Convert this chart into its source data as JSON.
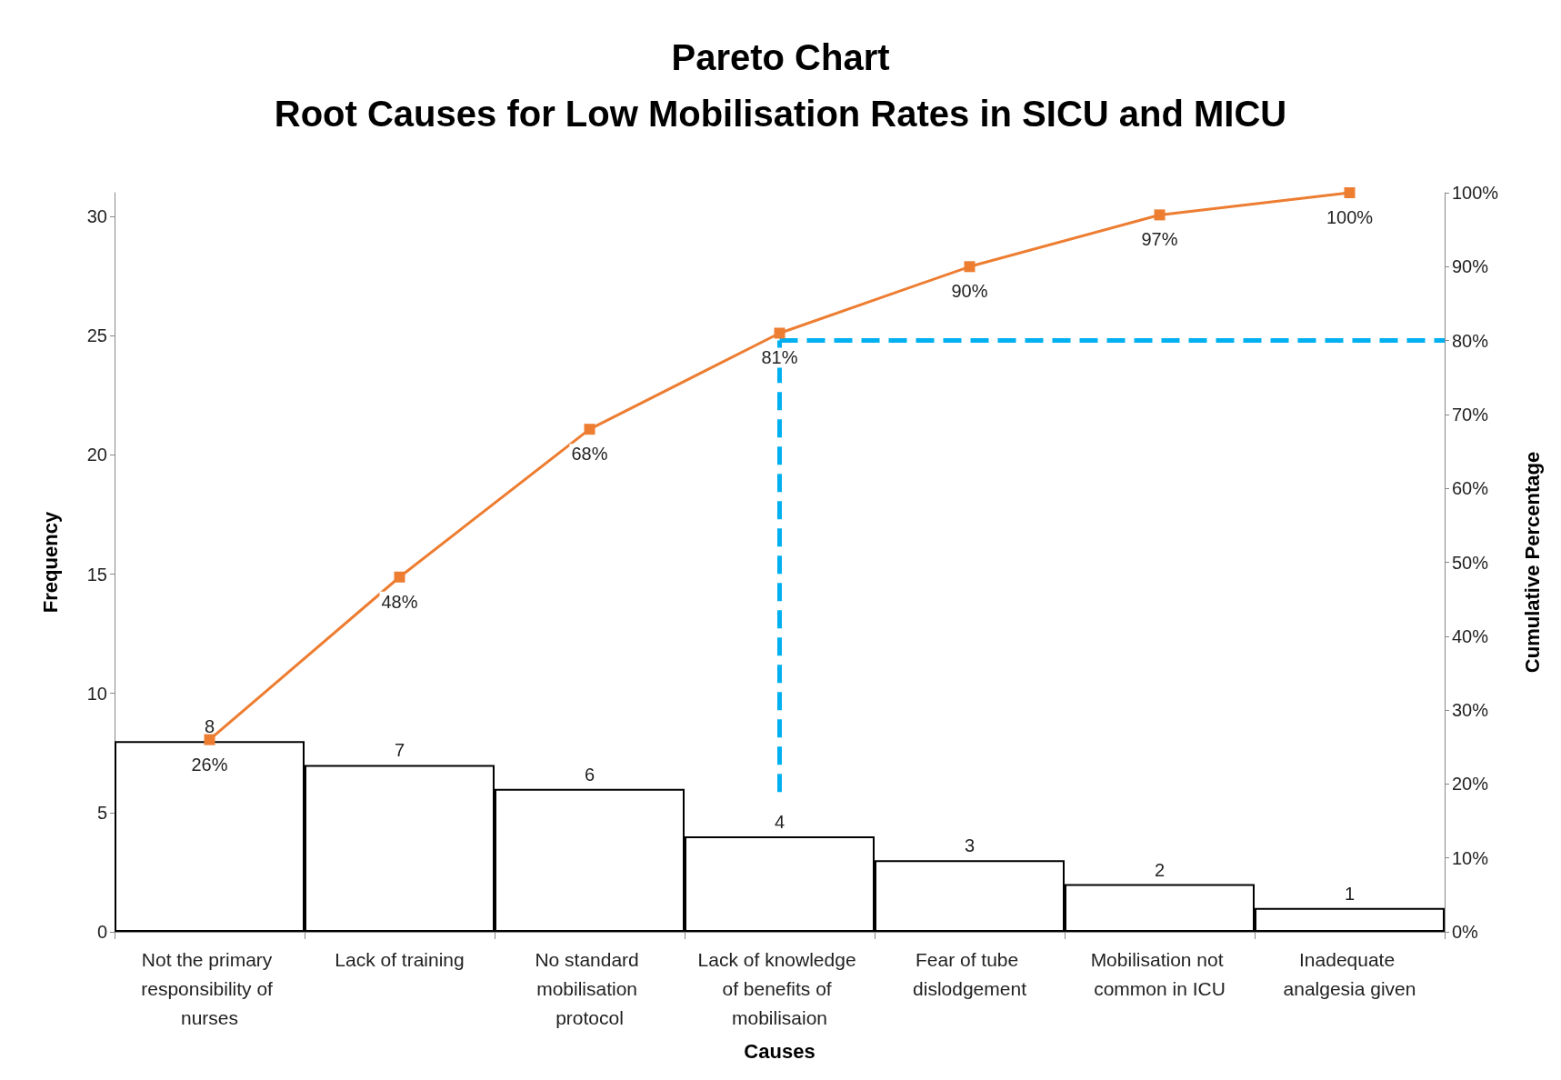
{
  "chart_data": {
    "type": "bar",
    "title": "Pareto Chart",
    "subtitle": "Root Causes for Low Mobilisation Rates in SICU and MICU",
    "xlabel": "Causes",
    "ylabel": "Frequency",
    "y2label": "Cumulative Percentage",
    "categories": [
      "Not the primary responsibility of nurses",
      "Lack of training",
      "No standard mobilisation protocol",
      "Lack of knowledge of benefits of mobilisaion",
      "Fear of tube dislodgement",
      "Mobilisation not common in ICU",
      "Inadequate analgesia given"
    ],
    "series": [
      {
        "color": "#ffffff",
        "values": [
          8,
          7,
          6,
          4,
          3,
          2,
          1
        ],
        "data_labels": true
      },
      {
        "type": "line",
        "axis": "y2",
        "color": "#ed7d31",
        "marker": "square",
        "values": [
          26,
          48,
          68,
          81,
          90,
          97,
          100
        ],
        "value_labels": [
          "26%",
          "48%",
          "68%",
          "81%",
          "90%",
          "97%",
          "100%"
        ]
      }
    ],
    "ylim": [
      0,
      31
    ],
    "yticks": [
      0,
      5,
      10,
      15,
      20,
      25,
      30
    ],
    "y2lim": [
      0,
      100
    ],
    "y2ticks": [
      {
        "value": 0,
        "label": "0%"
      },
      {
        "value": 10,
        "label": "10%"
      },
      {
        "value": 20,
        "label": "20%"
      },
      {
        "value": 30,
        "label": "30%"
      },
      {
        "value": 40,
        "label": "40%"
      },
      {
        "value": 50,
        "label": "50%"
      },
      {
        "value": 60,
        "label": "60%"
      },
      {
        "value": 70,
        "label": "70%"
      },
      {
        "value": 80,
        "label": "80%"
      },
      {
        "value": 90,
        "label": "90%"
      },
      {
        "value": 100,
        "label": "100%"
      }
    ],
    "ref_lines": [
      {
        "axis": "y2",
        "value": 80,
        "color": "#00b0f0",
        "line_style": "dashed"
      },
      {
        "axis": "x",
        "value": "Lack of knowledge of benefits of mobilisaion",
        "color": "#00b0f0",
        "line_style": "dashed"
      }
    ],
    "grid": false
  }
}
